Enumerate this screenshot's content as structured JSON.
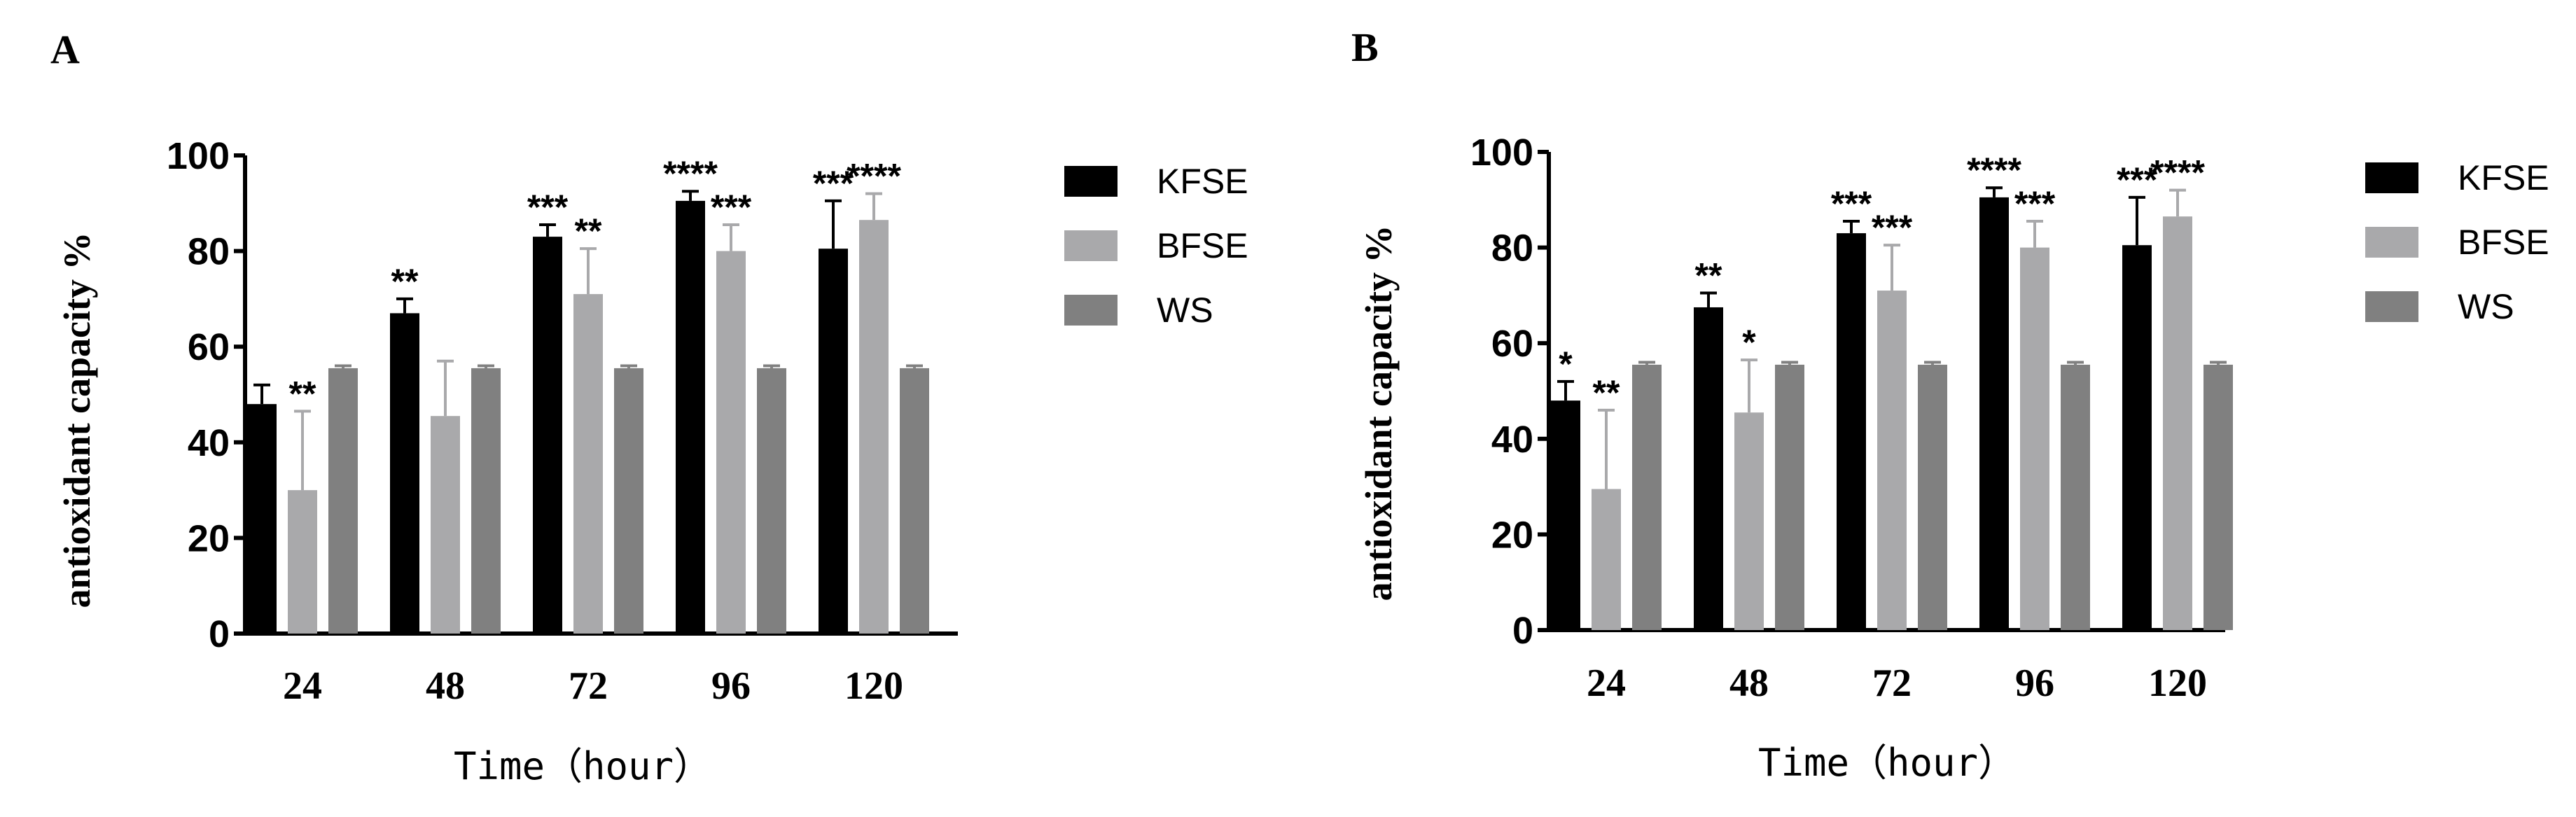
{
  "colors": {
    "KFSE": "#000000",
    "BFSE": "#a9a9ab",
    "WS": "#808080",
    "axis": "#000000"
  },
  "chart_data": [
    {
      "panel_label": "A",
      "type": "bar",
      "title": "",
      "xlabel": "Time（hour）",
      "ylabel": "antioxidant capacity %",
      "ylim": [
        0,
        100
      ],
      "yticks": [
        0,
        20,
        40,
        60,
        80,
        100
      ],
      "categories": [
        "24",
        "48",
        "72",
        "96",
        "120"
      ],
      "legend_position": "right",
      "series": [
        {
          "name": "KFSE",
          "values": [
            48,
            67,
            83,
            90.5,
            80.5
          ],
          "errors": [
            4,
            3,
            2.5,
            2,
            10
          ],
          "significance": [
            "",
            "**",
            "***",
            "****",
            "***"
          ]
        },
        {
          "name": "BFSE",
          "values": [
            30,
            45.5,
            71,
            80,
            86.5
          ],
          "errors": [
            16.5,
            11.5,
            9.5,
            5.5,
            5.5
          ],
          "significance": [
            "**",
            "",
            "**",
            "***",
            "****"
          ]
        },
        {
          "name": "WS",
          "values": [
            55.5,
            55.5,
            55.5,
            55.5,
            55.5
          ],
          "errors": [
            0.5,
            0.5,
            0.5,
            0.5,
            0.5
          ],
          "significance": [
            "",
            "",
            "",
            "",
            ""
          ]
        }
      ]
    },
    {
      "panel_label": "B",
      "type": "bar",
      "title": "",
      "xlabel": "Time（hour）",
      "ylabel": "antioxidant capacity %",
      "ylim": [
        0,
        100
      ],
      "yticks": [
        0,
        20,
        40,
        60,
        80,
        100
      ],
      "categories": [
        "24",
        "48",
        "72",
        "96",
        "120"
      ],
      "legend_position": "right",
      "series": [
        {
          "name": "KFSE",
          "values": [
            48,
            67.5,
            83,
            90.5,
            80.5
          ],
          "errors": [
            4,
            3,
            2.5,
            2,
            10
          ],
          "significance": [
            "*",
            "**",
            "***",
            "****",
            "***"
          ]
        },
        {
          "name": "BFSE",
          "values": [
            29.5,
            45.5,
            71,
            80,
            86.5
          ],
          "errors": [
            16.5,
            11,
            9.5,
            5.5,
            5.5
          ],
          "significance": [
            "**",
            "*",
            "***",
            "***",
            "****"
          ]
        },
        {
          "name": "WS",
          "values": [
            55.5,
            55.5,
            55.5,
            55.5,
            55.5
          ],
          "errors": [
            0.5,
            0.5,
            0.5,
            0.5,
            0.5
          ],
          "significance": [
            "",
            "",
            "",
            "",
            ""
          ]
        }
      ]
    }
  ]
}
